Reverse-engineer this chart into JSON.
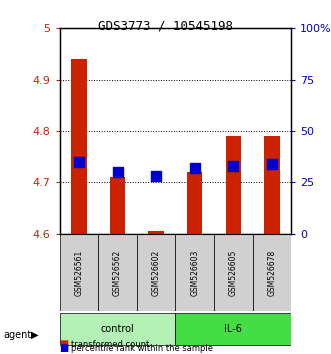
{
  "title": "GDS3773 / 10545198",
  "samples": [
    "GSM526561",
    "GSM526562",
    "GSM526602",
    "GSM526603",
    "GSM526605",
    "GSM526678"
  ],
  "red_values": [
    4.94,
    4.71,
    4.605,
    4.72,
    4.79,
    4.79
  ],
  "blue_values_pct": [
    35,
    30,
    28,
    32,
    33,
    34
  ],
  "bar_base": 4.6,
  "ylim_left": [
    4.6,
    5.0
  ],
  "ylim_right": [
    0,
    100
  ],
  "yticks_left": [
    4.6,
    4.7,
    4.8,
    4.9,
    5.0
  ],
  "ytick_labels_left": [
    "4.6",
    "4.7",
    "4.8",
    "4.9",
    "5"
  ],
  "yticks_right": [
    0,
    25,
    50,
    75,
    100
  ],
  "ytick_labels_right": [
    "0",
    "25",
    "50",
    "75",
    "100%"
  ],
  "groups": [
    {
      "label": "control",
      "indices": [
        0,
        1,
        2
      ],
      "color": "#b3f0b3"
    },
    {
      "label": "IL-6",
      "indices": [
        3,
        4,
        5
      ],
      "color": "#44dd44"
    }
  ],
  "group_label": "agent",
  "bar_color": "#cc2200",
  "dot_color": "#0000cc",
  "legend_red": "transformed count",
  "legend_blue": "percentile rank within the sample",
  "bg_color": "#ffffff",
  "plot_bg": "#ffffff",
  "grid_color": "#000000",
  "tick_label_color_left": "#cc2200",
  "tick_label_color_right": "#0000cc",
  "bar_width": 0.4,
  "dot_size": 50
}
